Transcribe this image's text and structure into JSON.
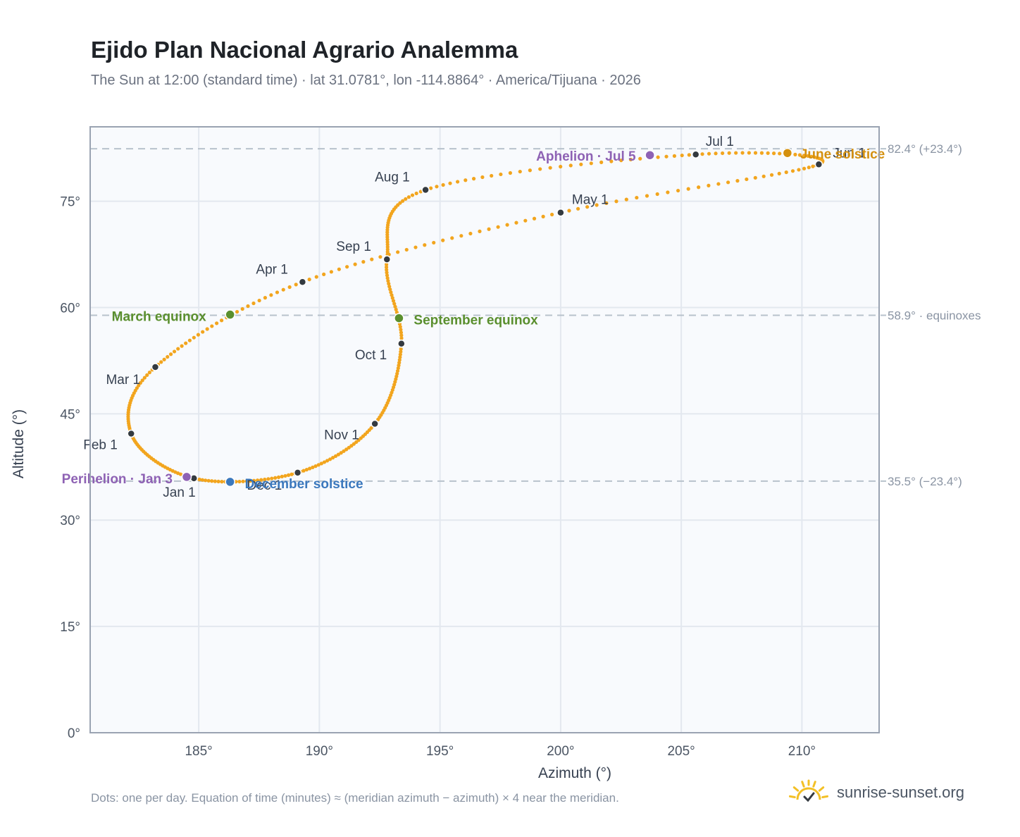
{
  "title": "Ejido Plan Nacional Agrario Analemma",
  "subtitle": "The Sun at 12:00 (standard time) · lat 31.0781°, lon -114.8864° · America/Tijuana · 2026",
  "footnote": "Dots: one per day. Equation of time (minutes) ≈ (meridian azimuth − azimuth) × 4 near the meridian.",
  "brand": "sunrise-sunset.org",
  "colors": {
    "curve": "#f2a51e",
    "month_dot": "#343a40",
    "equinox": "#5a8f2e",
    "december_solstice": "#3b78bd",
    "june_solstice": "#d4900e",
    "apsis": "#8e62b4",
    "plot_bg": "#f8fafd",
    "grid": "#e3e8ef",
    "frame": "#9aa3b2",
    "ref_line": "#b8c2cc",
    "axis_text": "#4b5563",
    "brand_sun": "#f3c025"
  },
  "chart_data": {
    "type": "scatter",
    "xlabel": "Azimuth (°)",
    "ylabel": "Altitude (°)",
    "xlim": [
      180.5,
      213.2
    ],
    "ylim": [
      0,
      85.5
    ],
    "xticks": [
      185,
      190,
      195,
      200,
      205,
      210
    ],
    "yticks": [
      0,
      15,
      30,
      45,
      60,
      75
    ],
    "x_tick_labels": [
      "185°",
      "190°",
      "195°",
      "200°",
      "205°",
      "210°"
    ],
    "y_tick_labels": [
      "0°",
      "15°",
      "30°",
      "45°",
      "60°",
      "75°"
    ],
    "grid": true,
    "reference_lines": [
      {
        "altitude": 82.4,
        "label": "82.4° (+23.4°)"
      },
      {
        "altitude": 58.9,
        "label": "58.9° · equinoxes"
      },
      {
        "altitude": 35.5,
        "label": "35.5° (−23.4°)"
      }
    ],
    "month_points": [
      {
        "label": "Jan 1",
        "azimuth": 184.8,
        "altitude": 35.9
      },
      {
        "label": "Feb 1",
        "azimuth": 182.2,
        "altitude": 42.2
      },
      {
        "label": "Mar 1",
        "azimuth": 183.2,
        "altitude": 51.6
      },
      {
        "label": "Apr 1",
        "azimuth": 189.3,
        "altitude": 63.6
      },
      {
        "label": "May 1",
        "azimuth": 200.0,
        "altitude": 73.4
      },
      {
        "label": "Jun 1",
        "azimuth": 210.7,
        "altitude": 80.2
      },
      {
        "label": "Jul 1",
        "azimuth": 205.6,
        "altitude": 81.6
      },
      {
        "label": "Aug 1",
        "azimuth": 194.4,
        "altitude": 76.6
      },
      {
        "label": "Sep 1",
        "azimuth": 192.8,
        "altitude": 66.8
      },
      {
        "label": "Oct 1",
        "azimuth": 193.4,
        "altitude": 54.9
      },
      {
        "label": "Nov 1",
        "azimuth": 192.3,
        "altitude": 43.6
      },
      {
        "label": "Dec 1",
        "azimuth": 189.1,
        "altitude": 36.7
      }
    ],
    "events": [
      {
        "label": "March equinox",
        "azimuth": 186.3,
        "altitude": 59.0,
        "kind": "equinox"
      },
      {
        "label": "September equinox",
        "azimuth": 193.3,
        "altitude": 58.5,
        "kind": "equinox"
      },
      {
        "label": "June solstice",
        "azimuth": 209.4,
        "altitude": 81.8,
        "kind": "june_solstice"
      },
      {
        "label": "December solstice",
        "azimuth": 186.3,
        "altitude": 35.4,
        "kind": "december_solstice"
      },
      {
        "label": "Perihelion · Jan 3",
        "azimuth": 184.5,
        "altitude": 36.1,
        "kind": "apsis"
      },
      {
        "label": "Aphelion · Jul 5",
        "azimuth": 203.7,
        "altitude": 81.5,
        "kind": "apsis"
      }
    ]
  }
}
